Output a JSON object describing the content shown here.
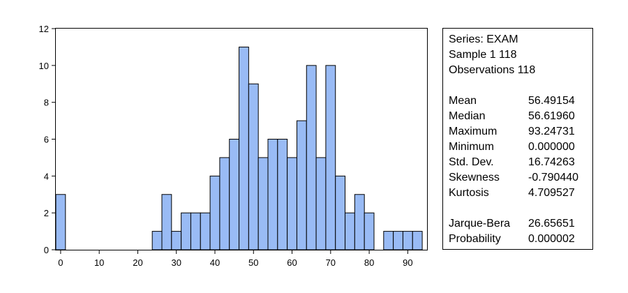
{
  "chart_data": {
    "type": "bar",
    "bin_width": 2.5,
    "bins": [
      {
        "x": 0,
        "count": 3
      },
      {
        "x": 2.5,
        "count": 0
      },
      {
        "x": 5,
        "count": 0
      },
      {
        "x": 7.5,
        "count": 0
      },
      {
        "x": 10,
        "count": 0
      },
      {
        "x": 12.5,
        "count": 0
      },
      {
        "x": 15,
        "count": 0
      },
      {
        "x": 17.5,
        "count": 0
      },
      {
        "x": 20,
        "count": 0
      },
      {
        "x": 22.5,
        "count": 0
      },
      {
        "x": 25,
        "count": 1
      },
      {
        "x": 27.5,
        "count": 3
      },
      {
        "x": 30,
        "count": 1
      },
      {
        "x": 32.5,
        "count": 2
      },
      {
        "x": 35,
        "count": 2
      },
      {
        "x": 37.5,
        "count": 2
      },
      {
        "x": 40,
        "count": 4
      },
      {
        "x": 42.5,
        "count": 5
      },
      {
        "x": 45,
        "count": 6
      },
      {
        "x": 47.5,
        "count": 11
      },
      {
        "x": 50,
        "count": 9
      },
      {
        "x": 52.5,
        "count": 5
      },
      {
        "x": 55,
        "count": 6
      },
      {
        "x": 57.5,
        "count": 6
      },
      {
        "x": 60,
        "count": 5
      },
      {
        "x": 62.5,
        "count": 7
      },
      {
        "x": 65,
        "count": 10
      },
      {
        "x": 67.5,
        "count": 5
      },
      {
        "x": 70,
        "count": 10
      },
      {
        "x": 72.5,
        "count": 4
      },
      {
        "x": 75,
        "count": 2
      },
      {
        "x": 77.5,
        "count": 3
      },
      {
        "x": 80,
        "count": 2
      },
      {
        "x": 82.5,
        "count": 0
      },
      {
        "x": 85,
        "count": 1
      },
      {
        "x": 87.5,
        "count": 1
      },
      {
        "x": 90,
        "count": 1
      },
      {
        "x": 92.5,
        "count": 1
      }
    ],
    "xlim": [
      -1.25,
      95
    ],
    "ylim": [
      0,
      12
    ],
    "x_ticks": [
      0,
      10,
      20,
      30,
      40,
      50,
      60,
      70,
      80,
      90
    ],
    "y_ticks": [
      0,
      2,
      4,
      6,
      8,
      10,
      12
    ],
    "x_tick_labels": [
      "0",
      "10",
      "20",
      "30",
      "40",
      "50",
      "60",
      "70",
      "80",
      "90"
    ],
    "y_tick_labels": [
      "0",
      "2",
      "4",
      "6",
      "8",
      "10",
      "12"
    ],
    "bar_color": "#99BBF5",
    "bar_edge_color": "#000000",
    "title": "",
    "xlabel": "",
    "ylabel": "",
    "grid": false,
    "legend": "none"
  },
  "stats": {
    "series": "Series: EXAM",
    "sample": "Sample 1 118",
    "observations": "Observations 118",
    "rows": [
      {
        "label": "Mean",
        "value": "56.49154"
      },
      {
        "label": "Median",
        "value": "56.61960"
      },
      {
        "label": "Maximum",
        "value": "93.24731"
      },
      {
        "label": "Minimum",
        "value": "0.000000"
      },
      {
        "label": "Std. Dev.",
        "value": "16.74263"
      },
      {
        "label": "Skewness",
        "value": "-0.790440"
      },
      {
        "label": "Kurtosis",
        "value": "4.709527"
      }
    ],
    "test_rows": [
      {
        "label": "Jarque-Bera",
        "value": "26.65651"
      },
      {
        "label": "Probability",
        "value": "0.000002"
      }
    ]
  }
}
